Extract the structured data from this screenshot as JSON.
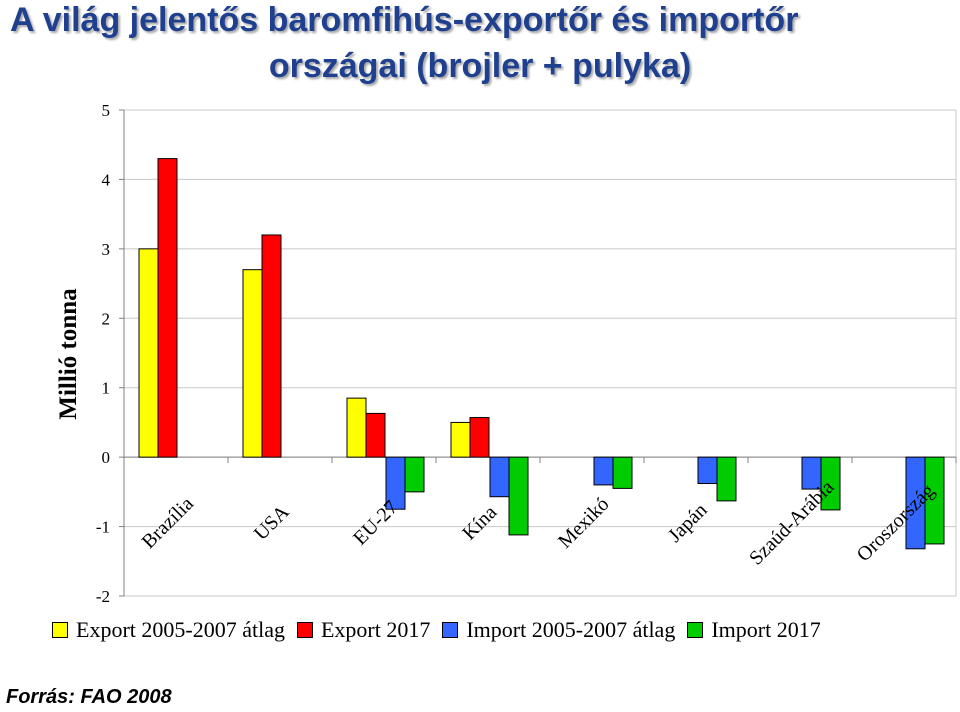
{
  "chart_data": {
    "type": "bar",
    "title_line1": "A világ jelentős baromfihús-exportőr és importőr",
    "title_line2": "országai (brojler + pulyka)",
    "ylabel": "Millió tonna",
    "ylim": [
      -2,
      5
    ],
    "yticks": [
      "5",
      "4",
      "3",
      "2",
      "1",
      "0",
      "-1",
      "-2"
    ],
    "grid": true,
    "legend_position": "bottom",
    "categories": [
      "Brazília",
      "USA",
      "EU-27",
      "Kína",
      "Mexikó",
      "Japán",
      "Szaúd-Arábia",
      "Oroszország"
    ],
    "series": [
      {
        "name": "Export 2005-2007 átlag",
        "color": "#ffff00",
        "values": [
          3.0,
          2.7,
          0.85,
          0.5,
          null,
          null,
          null,
          null
        ]
      },
      {
        "name": "Export 2017",
        "color": "#ff0000",
        "values": [
          4.3,
          3.2,
          0.63,
          0.57,
          null,
          null,
          null,
          null
        ]
      },
      {
        "name": "Import 2005-2007 átlag",
        "color": "#3366ff",
        "values": [
          null,
          null,
          -0.75,
          -0.57,
          -0.4,
          -0.38,
          -0.46,
          -1.32
        ]
      },
      {
        "name": "Import 2017",
        "color": "#00cc00",
        "values": [
          null,
          null,
          -0.5,
          -1.12,
          -0.45,
          -0.63,
          -0.76,
          -1.25
        ]
      }
    ]
  },
  "source": "Forrás: FAO 2008"
}
